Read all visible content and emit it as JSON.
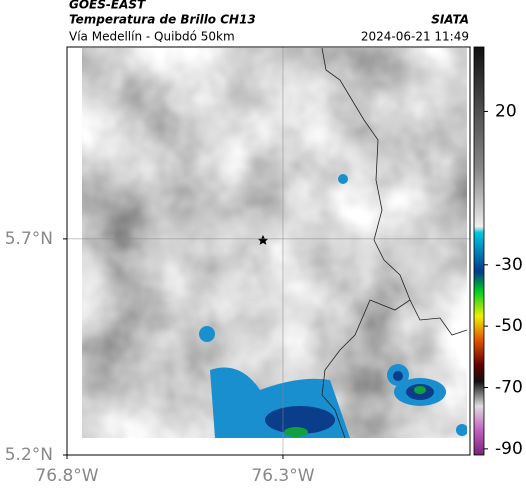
{
  "header": {
    "title": "GOES-EAST",
    "subtitle": "Temperatura de Brillo CH13",
    "region": "Vía Medellín - Quibdó 50km",
    "source": "SIATA",
    "datetime": "2024-06-21 11:49"
  },
  "map": {
    "lon_range": [
      -76.8,
      -75.867
    ],
    "lat_range": [
      5.2,
      6.144
    ],
    "xticks": [
      {
        "value": -76.8,
        "label": "76.8°W"
      },
      {
        "value": -76.3,
        "label": "76.3°W"
      }
    ],
    "yticks": [
      {
        "value": 5.7,
        "label": "5.7°N"
      },
      {
        "value": 5.2,
        "label": "5.2°N"
      }
    ]
  },
  "colorbar": {
    "range": [
      -92,
      41
    ],
    "ticks": [
      20,
      -30,
      -50,
      -70,
      -90
    ]
  }
}
